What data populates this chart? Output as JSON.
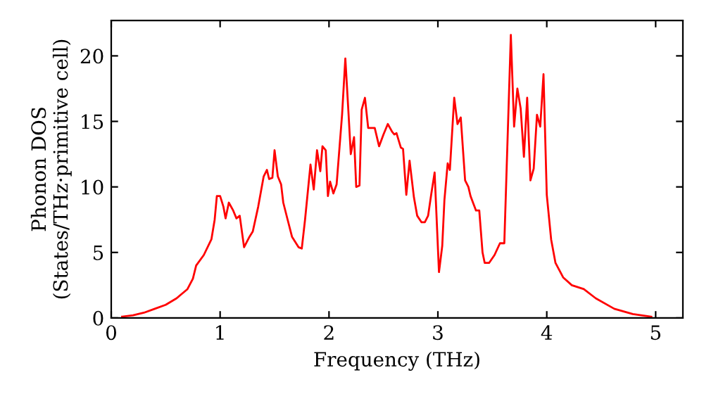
{
  "chart_data": {
    "type": "line",
    "xlabel": "Frequency (THz)",
    "ylabel": "Phonon DOS\n(States/THz·primitive cell)",
    "xlim": [
      0,
      5.25
    ],
    "ylim": [
      0,
      22.7
    ],
    "xticks": [
      0,
      1,
      2,
      3,
      4,
      5
    ],
    "yticks": [
      0,
      5,
      10,
      15,
      20
    ],
    "grid": false,
    "legend": false,
    "marker": "none",
    "line_style": "solid",
    "series": [
      {
        "color": "#ff0000",
        "x": [
          0.1,
          0.2,
          0.3,
          0.4,
          0.5,
          0.6,
          0.7,
          0.75,
          0.78,
          0.85,
          0.92,
          0.95,
          0.97,
          1.0,
          1.03,
          1.05,
          1.08,
          1.12,
          1.15,
          1.18,
          1.22,
          1.27,
          1.3,
          1.35,
          1.4,
          1.43,
          1.45,
          1.48,
          1.5,
          1.53,
          1.56,
          1.58,
          1.62,
          1.66,
          1.72,
          1.75,
          1.78,
          1.83,
          1.86,
          1.89,
          1.92,
          1.94,
          1.97,
          1.99,
          2.01,
          2.04,
          2.07,
          2.12,
          2.15,
          2.18,
          2.2,
          2.23,
          2.25,
          2.28,
          2.3,
          2.33,
          2.36,
          2.42,
          2.46,
          2.5,
          2.54,
          2.58,
          2.6,
          2.62,
          2.66,
          2.68,
          2.71,
          2.74,
          2.78,
          2.81,
          2.85,
          2.88,
          2.91,
          2.94,
          2.97,
          3.01,
          3.04,
          3.06,
          3.09,
          3.11,
          3.15,
          3.18,
          3.21,
          3.25,
          3.28,
          3.3,
          3.35,
          3.38,
          3.41,
          3.43,
          3.47,
          3.52,
          3.57,
          3.61,
          3.67,
          3.7,
          3.73,
          3.76,
          3.79,
          3.82,
          3.85,
          3.88,
          3.91,
          3.94,
          3.97,
          4.0,
          4.04,
          4.08,
          4.15,
          4.23,
          4.34,
          4.45,
          4.62,
          4.79,
          4.96
        ],
        "values": [
          0.1,
          0.2,
          0.4,
          0.7,
          1.0,
          1.5,
          2.2,
          3.0,
          4.0,
          4.8,
          6.0,
          7.5,
          9.3,
          9.3,
          8.5,
          7.6,
          8.8,
          8.2,
          7.6,
          7.8,
          5.4,
          6.2,
          6.6,
          8.5,
          10.8,
          11.3,
          10.6,
          10.7,
          12.8,
          10.8,
          10.2,
          8.8,
          7.5,
          6.2,
          5.4,
          5.3,
          7.5,
          11.7,
          9.8,
          12.8,
          11.2,
          13.1,
          12.8,
          9.3,
          10.4,
          9.5,
          10.2,
          15.5,
          19.8,
          15.5,
          12.5,
          13.8,
          10.0,
          10.1,
          15.9,
          16.8,
          14.5,
          14.5,
          13.1,
          14.0,
          14.8,
          14.2,
          14.0,
          14.1,
          13.0,
          12.9,
          9.4,
          12.0,
          9.2,
          7.8,
          7.3,
          7.3,
          7.8,
          9.5,
          11.1,
          3.5,
          5.5,
          9.0,
          11.8,
          11.3,
          16.8,
          14.8,
          15.3,
          10.5,
          10.0,
          9.3,
          8.2,
          8.2,
          5.0,
          4.2,
          4.2,
          4.8,
          5.7,
          5.7,
          21.6,
          14.6,
          17.5,
          16.0,
          12.3,
          16.8,
          10.5,
          11.4,
          15.5,
          14.6,
          18.6,
          9.4,
          6.0,
          4.2,
          3.1,
          2.5,
          2.2,
          1.5,
          0.7,
          0.3,
          0.1
        ]
      }
    ]
  }
}
